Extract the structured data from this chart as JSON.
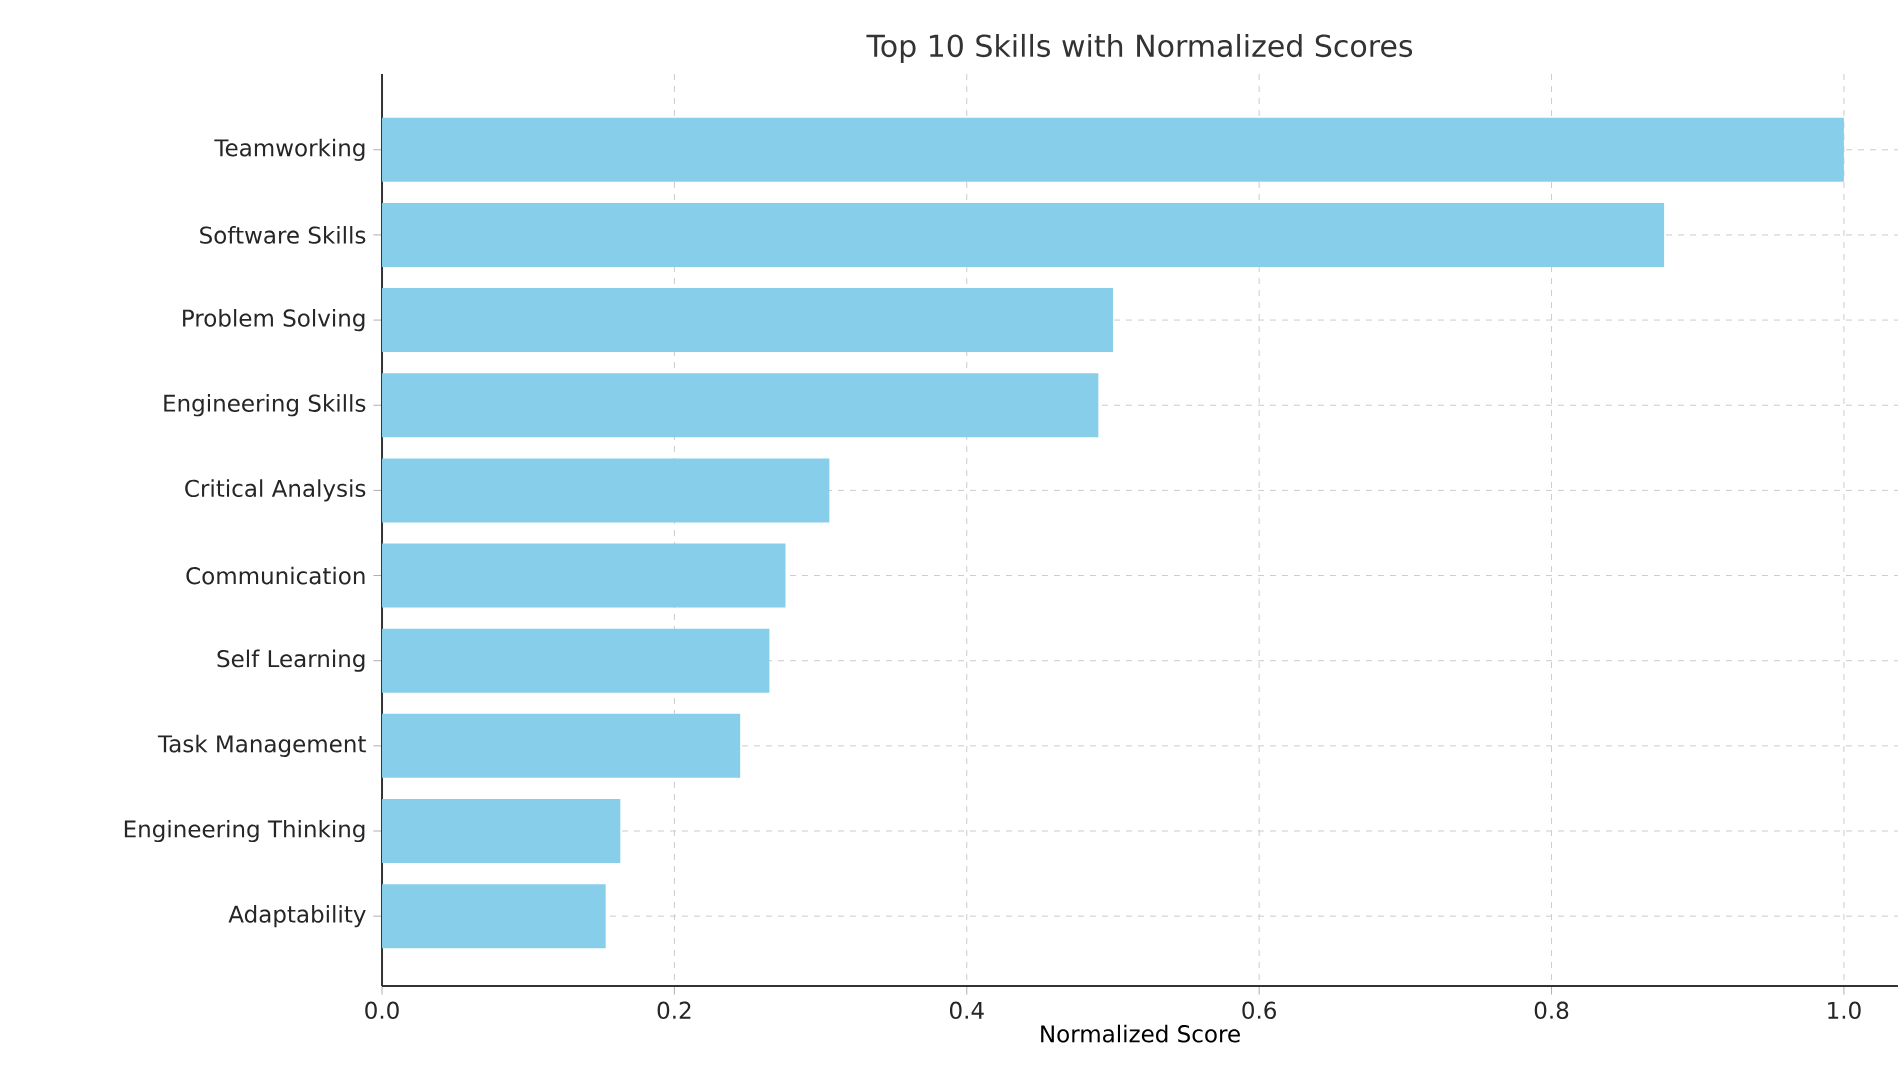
{
  "chart_data": {
    "type": "bar",
    "orientation": "horizontal",
    "title": "Top 10 Skills with Normalized Scores",
    "xlabel": "Normalized Score",
    "categories": [
      "Teamworking",
      "Software Skills",
      "Problem Solving",
      "Engineering Skills",
      "Critical Analysis",
      "Communication",
      "Self Learning",
      "Task Management",
      "Engineering Thinking",
      "Adaptability"
    ],
    "values": [
      1.0,
      0.877,
      0.5,
      0.49,
      0.306,
      0.276,
      0.265,
      0.245,
      0.163,
      0.153
    ],
    "color": "#87ceeb",
    "xlim": [
      0,
      1.037
    ],
    "xticks": [
      {
        "value": 0,
        "label": "0.0"
      },
      {
        "value": 0.2,
        "label": "0.2"
      },
      {
        "value": 0.4,
        "label": "0.4"
      },
      {
        "value": 0.6,
        "label": "0.6"
      },
      {
        "value": 0.8,
        "label": "0.8"
      },
      {
        "value": 1.0,
        "label": "1.0"
      }
    ],
    "grid": true
  }
}
